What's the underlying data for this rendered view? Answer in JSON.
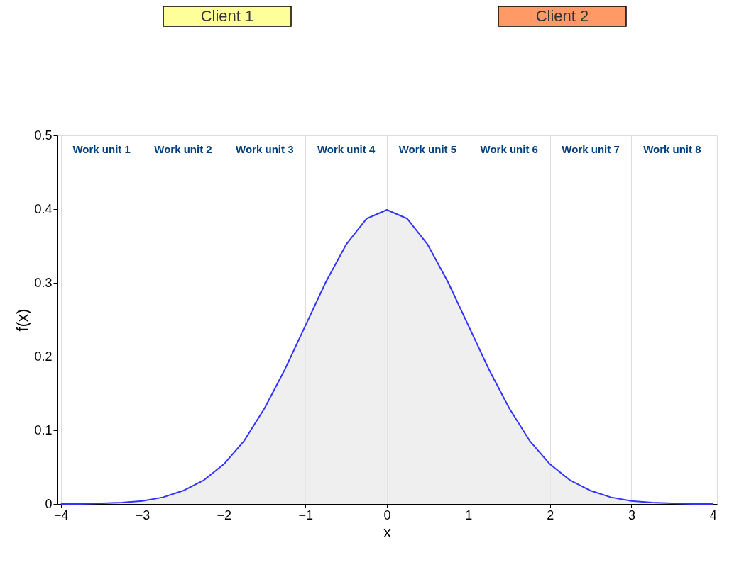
{
  "chart_data": {
    "type": "area",
    "xlabel": "x",
    "ylabel": "f(x)",
    "series": [
      {
        "color": "#3333ff",
        "x": [
          -4,
          -3.75,
          -3.5,
          -3.25,
          -3,
          -2.75,
          -2.5,
          -2.25,
          -2,
          -1.75,
          -1.5,
          -1.25,
          -1,
          -0.75,
          -0.5,
          -0.25,
          0,
          0.25,
          0.5,
          0.75,
          1,
          1.25,
          1.5,
          1.75,
          2,
          2.25,
          2.5,
          2.75,
          3,
          3.25,
          3.5,
          3.75,
          4
        ],
        "values": [
          0.0,
          0.0,
          0.001,
          0.002,
          0.004,
          0.009,
          0.018,
          0.032,
          0.054,
          0.086,
          0.13,
          0.183,
          0.242,
          0.301,
          0.352,
          0.387,
          0.399,
          0.387,
          0.352,
          0.301,
          0.242,
          0.183,
          0.13,
          0.086,
          0.054,
          0.032,
          0.018,
          0.009,
          0.004,
          0.002,
          0.001,
          0.0,
          0.0
        ]
      }
    ],
    "xlim": [
      -4.05,
      4.05
    ],
    "ylim": [
      0,
      0.5
    ],
    "xticks": [
      -4,
      -3,
      -2,
      -1,
      0,
      1,
      2,
      3,
      4
    ],
    "yticks": [
      0,
      0.1,
      0.2,
      0.3,
      0.4,
      0.5
    ],
    "grid": "x",
    "annotations": [
      "Client 1",
      "Client 2",
      "Work unit 1",
      "Work unit 2",
      "Work unit 3",
      "Work unit 4",
      "Work unit 5",
      "Work unit 6",
      "Work unit 7",
      "Work unit 8"
    ]
  }
}
